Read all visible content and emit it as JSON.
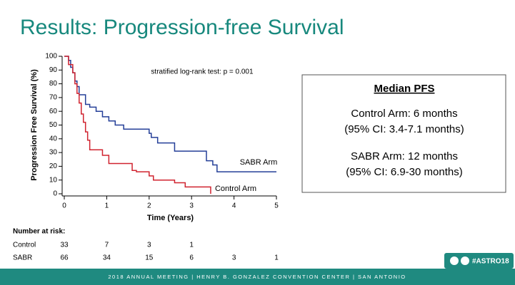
{
  "slide": {
    "title": "Results: Progression-free Survival"
  },
  "chart_data": {
    "type": "step",
    "x_label": "Time (Years)",
    "y_label": "Progression Free Survival (%)",
    "annotation": "stratified log-rank test: p = 0.001",
    "xlim": [
      0,
      5
    ],
    "xticks": [
      0,
      1,
      2,
      3,
      4,
      5
    ],
    "ylim": [
      0,
      100
    ],
    "yticks": [
      0,
      10,
      20,
      30,
      40,
      50,
      60,
      70,
      80,
      90,
      100
    ],
    "series": [
      {
        "name": "SABR Arm",
        "color": "#243f98",
        "x": [
          0,
          0.1,
          0.15,
          0.2,
          0.25,
          0.3,
          0.35,
          0.5,
          0.6,
          0.75,
          0.9,
          1.05,
          1.2,
          1.4,
          2.0,
          2.05,
          2.2,
          2.6,
          3.35,
          3.5,
          3.6,
          5
        ],
        "values": [
          100,
          97,
          92,
          88,
          82,
          78,
          72,
          65,
          63,
          60,
          56,
          53,
          50,
          47,
          44,
          41,
          37,
          31,
          24,
          21,
          16,
          16
        ]
      },
      {
        "name": "Control Arm",
        "color": "#d0232f",
        "x": [
          0,
          0.1,
          0.2,
          0.25,
          0.3,
          0.35,
          0.4,
          0.45,
          0.5,
          0.55,
          0.6,
          0.9,
          1.05,
          1.6,
          1.7,
          2.0,
          2.1,
          2.6,
          2.85,
          3.45
        ],
        "values": [
          100,
          94,
          88,
          80,
          73,
          66,
          58,
          52,
          45,
          39,
          32,
          28,
          22,
          17,
          16,
          13,
          10,
          8,
          5,
          0
        ]
      }
    ]
  },
  "risk_table": {
    "title": "Number at risk:",
    "rows": [
      {
        "label": "Control",
        "counts": [
          33,
          7,
          3,
          1
        ]
      },
      {
        "label": "SABR",
        "counts": [
          66,
          34,
          15,
          6,
          3,
          1
        ]
      }
    ]
  },
  "median_box": {
    "title": "Median PFS",
    "lines": [
      "Control Arm: 6 months",
      "(95% CI: 3.4-7.1 months)",
      "SABR Arm: 12 months",
      "(95% CI: 6.9-30 months)"
    ]
  },
  "footer": {
    "text": "2018 ANNUAL MEETING  |  HENRY B. GONZALEZ CONVENTION CENTER  |  SAN ANTONIO",
    "hashtag": "#ASTRO18"
  }
}
